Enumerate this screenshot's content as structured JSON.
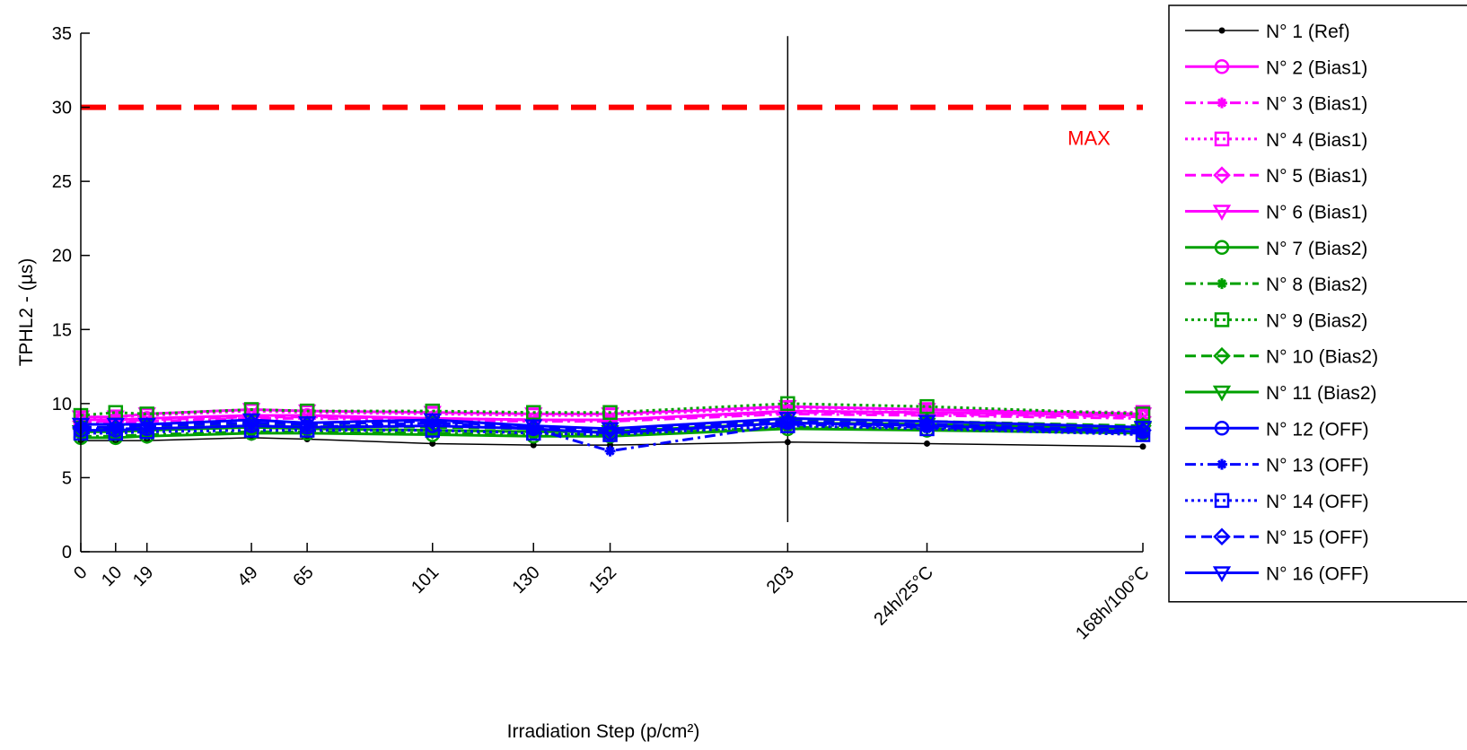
{
  "chart_data": {
    "type": "line",
    "xlabel": "Irradiation Step (p/cm²)",
    "ylabel": "TPHL2 - (µs)",
    "ylim": [
      0,
      35
    ],
    "yticks": [
      "0",
      "5",
      "10",
      "15",
      "20",
      "25",
      "30",
      "35"
    ],
    "x_tick_labels": [
      "0",
      "10",
      "19",
      "49",
      "65",
      "101",
      "130",
      "152",
      "203",
      "24h/25°C",
      "168h/100°C"
    ],
    "x_positions": [
      0,
      10,
      19,
      49,
      65,
      101,
      130,
      152,
      203,
      243,
      305
    ],
    "xlim": [
      0,
      305
    ],
    "grid": false,
    "legend_position": "outside-right",
    "reference_line": {
      "y": 30,
      "label": "MAX",
      "color": "#ff0000",
      "style": "dashed"
    },
    "marker_line": {
      "x": 203,
      "y_range": [
        2,
        34.8
      ],
      "color": "#000000"
    },
    "series": [
      {
        "name": "N° 1 (Ref)",
        "color": "#000000",
        "dash": "solid",
        "marker": "dot",
        "values": [
          7.5,
          7.5,
          7.5,
          7.7,
          7.6,
          7.3,
          7.2,
          7.2,
          7.4,
          7.3,
          7.1
        ]
      },
      {
        "name": "N° 2 (Bias1)",
        "color": "#ff00ff",
        "dash": "solid",
        "marker": "circle",
        "values": [
          8.9,
          8.9,
          9.0,
          9.2,
          9.2,
          9.0,
          8.9,
          8.9,
          9.5,
          9.4,
          9.2
        ]
      },
      {
        "name": "N° 3 (Bias1)",
        "color": "#ff00ff",
        "dash": "dashdot",
        "marker": "star",
        "values": [
          8.7,
          8.7,
          8.8,
          9.0,
          9.0,
          8.9,
          8.8,
          8.8,
          9.3,
          9.2,
          9.0
        ]
      },
      {
        "name": "N° 4 (Bias1)",
        "color": "#ff00ff",
        "dash": "dotted",
        "marker": "square",
        "values": [
          9.0,
          9.1,
          9.2,
          9.5,
          9.4,
          9.3,
          9.2,
          9.2,
          9.7,
          9.6,
          9.4
        ]
      },
      {
        "name": "N° 5 (Bias1)",
        "color": "#ff00ff",
        "dash": "dashed",
        "marker": "diamond",
        "values": [
          8.8,
          8.8,
          8.9,
          9.1,
          9.1,
          9.0,
          8.9,
          8.9,
          9.4,
          9.3,
          9.1
        ]
      },
      {
        "name": "N° 6 (Bias1)",
        "color": "#ff00ff",
        "dash": "solid",
        "marker": "triangle",
        "values": [
          9.1,
          9.1,
          9.3,
          9.6,
          9.5,
          9.4,
          9.3,
          9.3,
          9.8,
          9.6,
          9.3
        ]
      },
      {
        "name": "N° 7 (Bias2)",
        "color": "#00a000",
        "dash": "solid",
        "marker": "circle",
        "values": [
          7.7,
          7.7,
          7.8,
          8.0,
          8.0,
          7.9,
          7.8,
          7.8,
          8.3,
          8.2,
          8.0
        ]
      },
      {
        "name": "N° 8 (Bias2)",
        "color": "#00a000",
        "dash": "dashdot",
        "marker": "star",
        "values": [
          7.8,
          7.8,
          7.9,
          8.1,
          8.1,
          8.0,
          7.9,
          7.9,
          8.4,
          8.3,
          8.1
        ]
      },
      {
        "name": "N° 9 (Bias2)",
        "color": "#00a000",
        "dash": "dotted",
        "marker": "square",
        "values": [
          9.2,
          9.4,
          9.3,
          9.6,
          9.5,
          9.5,
          9.4,
          9.4,
          10.0,
          9.8,
          9.3
        ]
      },
      {
        "name": "N° 10 (Bias2)",
        "color": "#00a000",
        "dash": "dashed",
        "marker": "diamond",
        "values": [
          8.3,
          8.3,
          8.4,
          8.6,
          8.5,
          8.4,
          8.3,
          8.3,
          8.9,
          8.8,
          8.5
        ]
      },
      {
        "name": "N° 11 (Bias2)",
        "color": "#00a000",
        "dash": "solid",
        "marker": "triangle",
        "values": [
          8.1,
          8.1,
          8.2,
          8.4,
          8.3,
          8.2,
          8.1,
          8.1,
          8.7,
          8.6,
          8.3
        ]
      },
      {
        "name": "N° 12 (OFF)",
        "color": "#0000ff",
        "dash": "solid",
        "marker": "circle",
        "values": [
          8.2,
          8.2,
          8.3,
          8.5,
          8.4,
          8.5,
          8.3,
          8.0,
          8.7,
          8.5,
          8.1
        ]
      },
      {
        "name": "N° 13 (OFF)",
        "color": "#0000ff",
        "dash": "dashdot",
        "marker": "star",
        "values": [
          8.3,
          8.3,
          8.3,
          8.5,
          8.4,
          8.7,
          8.3,
          6.8,
          8.6,
          8.4,
          8.0
        ]
      },
      {
        "name": "N° 14 (OFF)",
        "color": "#0000ff",
        "dash": "dotted",
        "marker": "square",
        "values": [
          8.0,
          8.0,
          8.1,
          8.2,
          8.2,
          8.2,
          8.0,
          7.9,
          8.5,
          8.3,
          7.9
        ]
      },
      {
        "name": "N° 15 (OFF)",
        "color": "#0000ff",
        "dash": "dashed",
        "marker": "diamond",
        "values": [
          8.4,
          8.4,
          8.5,
          8.7,
          8.6,
          8.8,
          8.4,
          8.2,
          8.8,
          8.6,
          8.2
        ]
      },
      {
        "name": "N° 16 (OFF)",
        "color": "#0000ff",
        "dash": "solid",
        "marker": "triangle",
        "values": [
          8.6,
          8.6,
          8.6,
          8.9,
          8.7,
          8.9,
          8.5,
          8.3,
          9.0,
          8.8,
          8.4
        ]
      }
    ]
  }
}
